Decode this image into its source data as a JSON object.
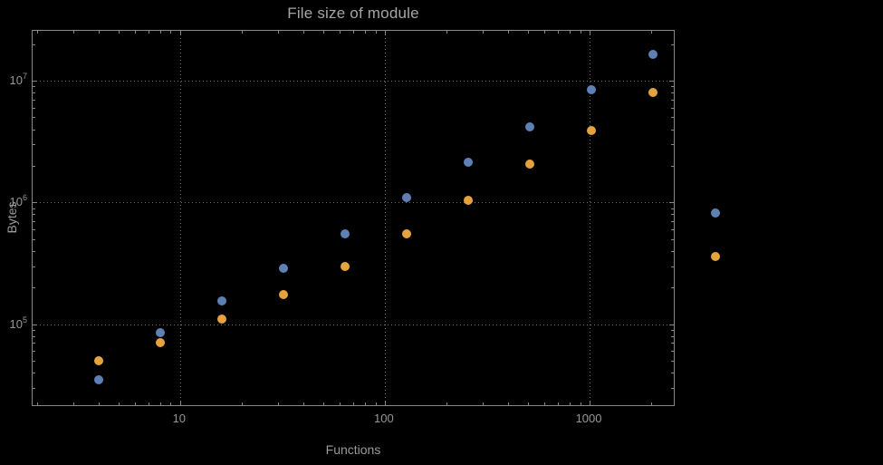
{
  "colors": {
    "background": "#000000",
    "frame": "#878787",
    "grid": "#6f6f6f",
    "text": "#9a9a9a",
    "series1": "#5E81B5",
    "series2": "#E5A33D"
  },
  "chart_data": {
    "type": "scatter",
    "title": "File size of module",
    "xlabel": "Functions",
    "ylabel": "Bytes",
    "x_scale": "log",
    "y_scale": "log",
    "grid": "dotted, at decade lines only",
    "xlog_range": [
      0.28,
      3.42
    ],
    "ylog_range": [
      4.32,
      7.41
    ],
    "x_ticks": [
      {
        "value": 10,
        "label": "10"
      },
      {
        "value": 100,
        "label": "100"
      },
      {
        "value": 1000,
        "label": "1000"
      }
    ],
    "y_ticks": [
      {
        "value": 100000,
        "base": "10",
        "exp": "5"
      },
      {
        "value": 1000000,
        "base": "10",
        "exp": "6"
      },
      {
        "value": 10000000,
        "base": "10",
        "exp": "7"
      }
    ],
    "x": [
      4,
      8,
      16,
      32,
      64,
      128,
      256,
      512,
      1024,
      2048
    ],
    "series": [
      {
        "name": "series-1-blue",
        "color": "#5E81B5",
        "values": [
          35000,
          85000,
          155000,
          290000,
          550000,
          1100000,
          2150000,
          4200000,
          8500000,
          16500000
        ]
      },
      {
        "name": "series-2-orange",
        "color": "#E5A33D",
        "values": [
          50000,
          70000,
          110000,
          175000,
          300000,
          550000,
          1050000,
          2050000,
          3900000,
          8000000
        ]
      }
    ],
    "legend_markers": [
      {
        "name": "legend-marker-series-1",
        "color": "#5E81B5"
      },
      {
        "name": "legend-marker-series-2",
        "color": "#E5A33D"
      }
    ]
  }
}
